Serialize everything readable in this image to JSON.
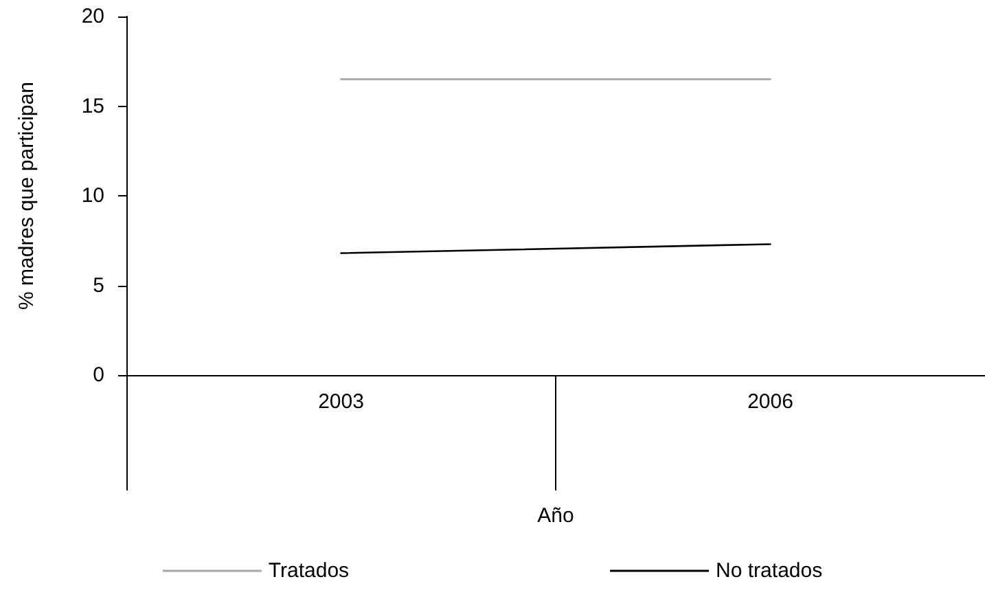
{
  "chart_data": {
    "type": "line",
    "xlabel": "Año",
    "ylabel": "% madres que participan",
    "categories": [
      "2003",
      "2006"
    ],
    "series": [
      {
        "name": "Tratados",
        "color": "#a6a6a6",
        "values": [
          16.5,
          16.5
        ]
      },
      {
        "name": "No tratados",
        "color": "#000000",
        "values": [
          6.8,
          7.3
        ]
      }
    ],
    "ylim": [
      0,
      20
    ],
    "yticks": [
      0,
      5,
      10,
      15,
      20
    ],
    "grid": false,
    "legend": "bottom",
    "marker": "none",
    "line_style": "solid"
  }
}
